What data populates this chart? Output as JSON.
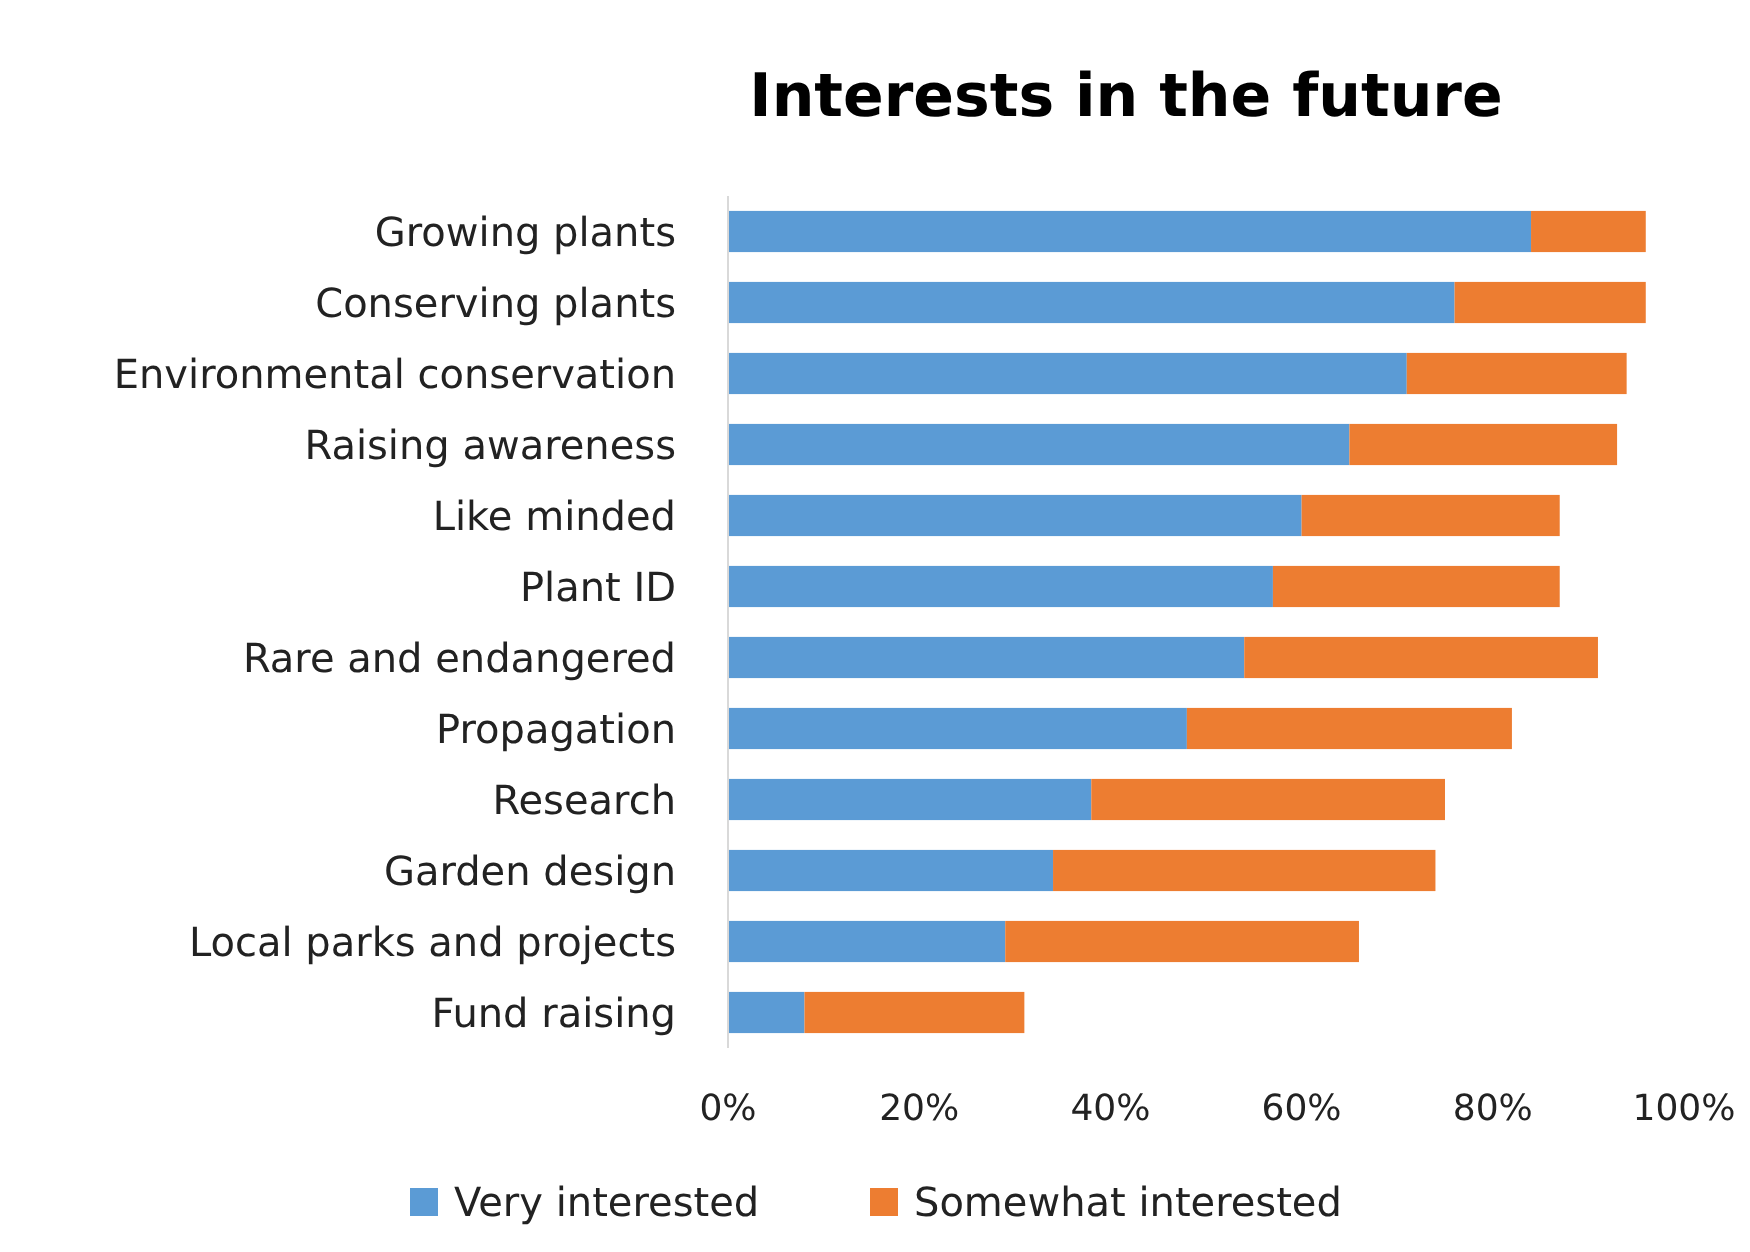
{
  "chart_data": {
    "type": "bar",
    "title": "Interests in the future",
    "orientation": "horizontal",
    "stacked": true,
    "categories": [
      "Growing plants",
      "Conserving plants",
      "Environmental conservation",
      "Raising awareness",
      "Like minded",
      "Plant ID",
      "Rare and endangered",
      "Propagation",
      "Research",
      "Garden design",
      "Local parks and projects",
      "Fund raising"
    ],
    "series": [
      {
        "name": "Very interested",
        "color": "#5b9bd5",
        "values": [
          84,
          76,
          71,
          65,
          60,
          57,
          54,
          48,
          38,
          34,
          29,
          8
        ]
      },
      {
        "name": "Somewhat interested",
        "color": "#ed7d31",
        "values": [
          12,
          20,
          23,
          28,
          27,
          30,
          37,
          34,
          37,
          40,
          37,
          23
        ]
      }
    ],
    "xlim": [
      0,
      100
    ],
    "xticks": [
      {
        "value": 0,
        "label": "0%"
      },
      {
        "value": 20,
        "label": "20%"
      },
      {
        "value": 40,
        "label": "40%"
      },
      {
        "value": 60,
        "label": "60%"
      },
      {
        "value": 80,
        "label": "80%"
      },
      {
        "value": 100,
        "label": "100%"
      }
    ],
    "grid": false,
    "legend": "bottom"
  }
}
